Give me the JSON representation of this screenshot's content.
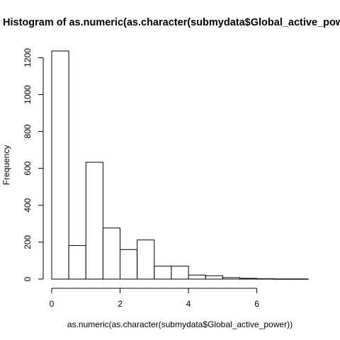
{
  "chart_data": {
    "type": "bar",
    "title": "Histogram of as.numeric(as.character(submydata$Global_active_power))",
    "xlabel": "as.numeric(as.character(submydata$Global_active_power))",
    "ylabel": "Frequency",
    "bin_width": 0.5,
    "bins": [
      {
        "x0": 0.0,
        "x1": 0.5,
        "count": 1236
      },
      {
        "x0": 0.5,
        "x1": 1.0,
        "count": 182
      },
      {
        "x0": 1.0,
        "x1": 1.5,
        "count": 633
      },
      {
        "x0": 1.5,
        "x1": 2.0,
        "count": 277
      },
      {
        "x0": 2.0,
        "x1": 2.5,
        "count": 160
      },
      {
        "x0": 2.5,
        "x1": 3.0,
        "count": 212
      },
      {
        "x0": 3.0,
        "x1": 3.5,
        "count": 70
      },
      {
        "x0": 3.5,
        "x1": 4.0,
        "count": 70
      },
      {
        "x0": 4.0,
        "x1": 4.5,
        "count": 22
      },
      {
        "x0": 4.5,
        "x1": 5.0,
        "count": 18
      },
      {
        "x0": 5.0,
        "x1": 5.5,
        "count": 8
      },
      {
        "x0": 5.5,
        "x1": 6.0,
        "count": 4
      },
      {
        "x0": 6.0,
        "x1": 6.5,
        "count": 2
      },
      {
        "x0": 6.5,
        "x1": 7.0,
        "count": 1
      },
      {
        "x0": 7.0,
        "x1": 7.5,
        "count": 1
      }
    ],
    "xlim": [
      0,
      7.5
    ],
    "ylim": [
      0,
      1236
    ],
    "x_ticks": [
      "0",
      "2",
      "4",
      "6"
    ],
    "y_ticks": [
      "0",
      "200",
      "400",
      "600",
      "800",
      "1000",
      "1200"
    ],
    "grid": false
  }
}
